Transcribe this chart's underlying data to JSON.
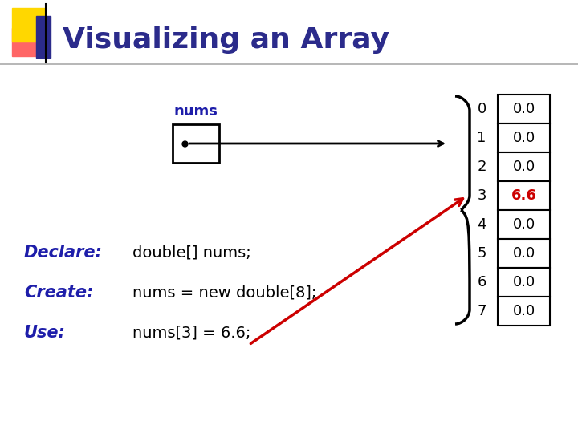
{
  "title": "Visualizing an Array",
  "title_color": "#2B2B8B",
  "bg_color": "#FFFFFF",
  "array_values": [
    "0.0",
    "0.0",
    "0.0",
    "6.6",
    "0.0",
    "0.0",
    "0.0",
    "0.0"
  ],
  "highlight_index": 3,
  "highlight_color": "#CC0000",
  "normal_color": "#000000",
  "cell_color": "#FFFFFF",
  "cell_border_color": "#000000",
  "declare_label": "Declare:",
  "declare_text": "double[] nums;",
  "create_label": "Create:",
  "create_text": "nums = new double[8];",
  "use_label": "Use:",
  "use_text": "nums[3] = 6.6;",
  "label_color": "#1E1EAA",
  "text_color": "#000000",
  "nums_label": "nums",
  "nums_label_color": "#1E1EAA",
  "arrow_color": "#CC0000",
  "brace_color": "#000000",
  "logo_yellow": "#FFD700",
  "logo_red": "#FF6666",
  "logo_blue": "#2B2B8B",
  "line_color": "#AAAAAA"
}
